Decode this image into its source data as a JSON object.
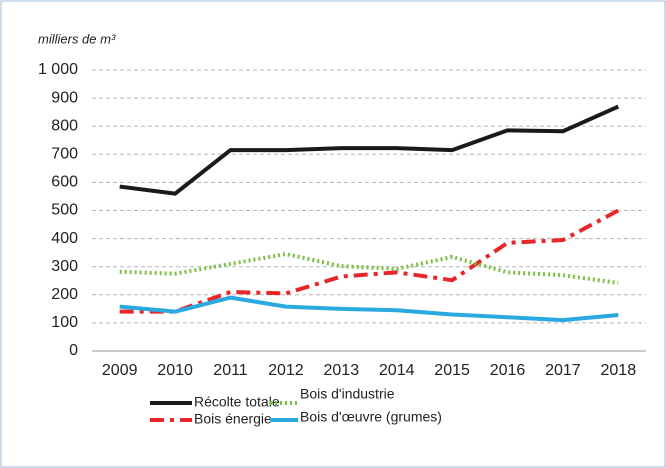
{
  "chart_data": {
    "type": "line",
    "title": "milliers de m³",
    "categories": [
      "2009",
      "2010",
      "2011",
      "2012",
      "2013",
      "2014",
      "2015",
      "2016",
      "2017",
      "2018"
    ],
    "series": [
      {
        "name": "Récolte totale",
        "color": "#1a1a1a",
        "style": "solid",
        "values": [
          585,
          560,
          715,
          715,
          722,
          722,
          715,
          785,
          782,
          870
        ]
      },
      {
        "name": "Bois énergie",
        "color": "#e8262a",
        "style": "dashed",
        "values": [
          140,
          140,
          210,
          205,
          265,
          280,
          252,
          385,
          395,
          500
        ]
      },
      {
        "name": "Bois d'industrie",
        "color": "#7dbf45",
        "style": "dotted",
        "values": [
          282,
          275,
          310,
          345,
          302,
          292,
          335,
          280,
          270,
          242
        ]
      },
      {
        "name": "Bois d'œuvre (grumes)",
        "color": "#2aa8e0",
        "style": "solid",
        "values": [
          158,
          140,
          190,
          158,
          150,
          145,
          130,
          120,
          110,
          128
        ]
      }
    ],
    "ylim": [
      0,
      1000
    ],
    "yticks": [
      0,
      100,
      200,
      300,
      400,
      500,
      600,
      700,
      800,
      900,
      {
        "value": 1000,
        "label": "1 000"
      }
    ],
    "grid": true,
    "legend": "bottom"
  }
}
